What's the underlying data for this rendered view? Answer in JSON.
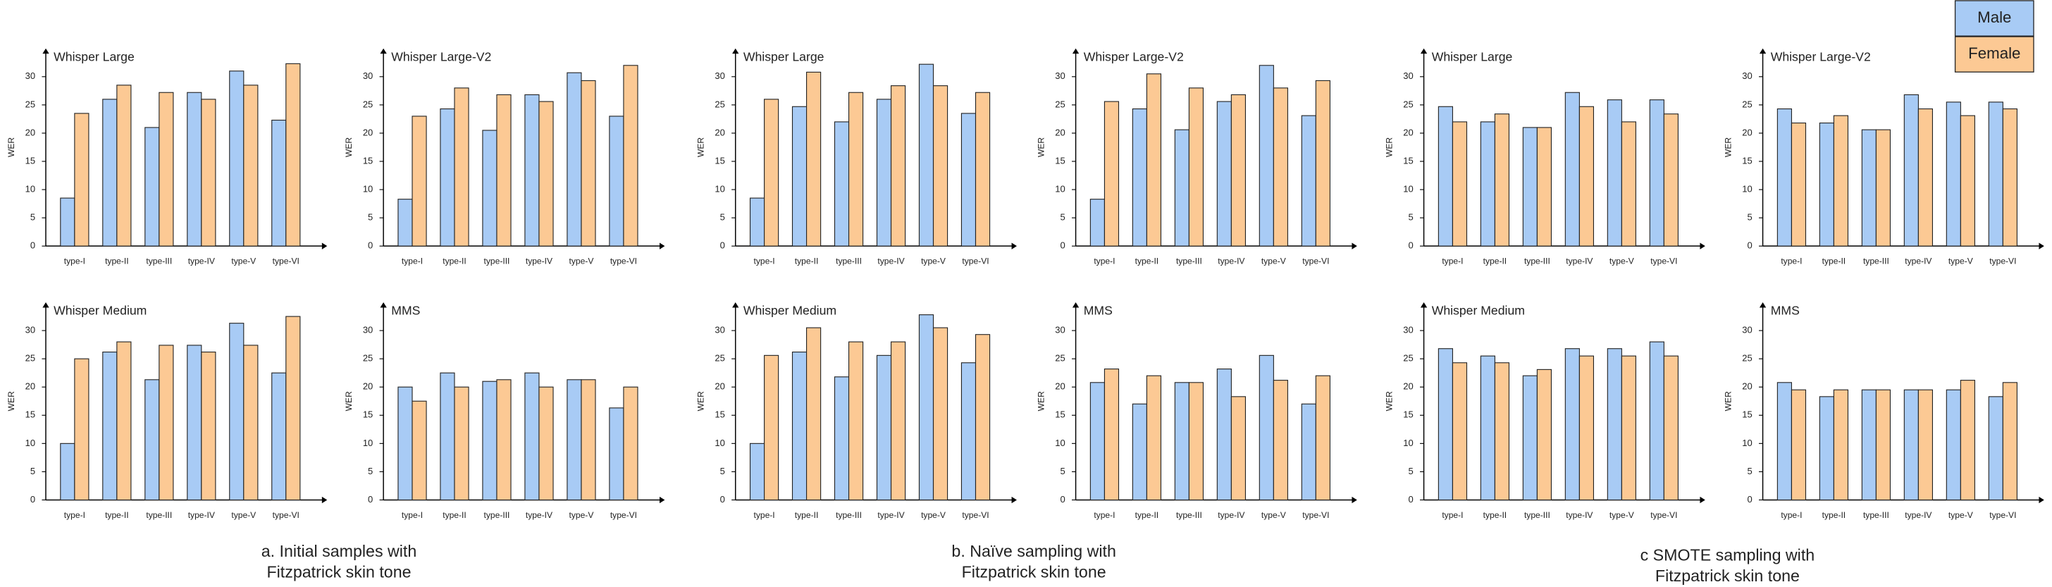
{
  "legend": [
    {
      "name": "Male",
      "color": "#a8cbf5"
    },
    {
      "name": "Female",
      "color": "#fcc994"
    }
  ],
  "captions": [
    [
      "a. Initial samples with",
      "Fitzpatrick skin tone"
    ],
    [
      "b. Naïve sampling with",
      "Fitzpatrick skin tone"
    ],
    [
      "c SMOTE sampling with",
      "Fitzpatrick skin tone"
    ]
  ],
  "chart_data": [
    {
      "type": "bar",
      "title": "Whisper Large",
      "ylabel": "WER",
      "categories": [
        "type-I",
        "type-II",
        "type-III",
        "type-IV",
        "type-V",
        "type-VI"
      ],
      "ylim": [
        0,
        35
      ],
      "yticks": [
        0,
        5,
        10,
        15,
        20,
        25,
        30
      ],
      "series": [
        {
          "color": "#a8cbf5",
          "values": [
            8.5,
            26,
            21,
            27.2,
            31,
            22.3
          ]
        },
        {
          "color": "#fcc994",
          "values": [
            23.5,
            28.5,
            27.2,
            26,
            28.5,
            32.3
          ]
        }
      ]
    },
    {
      "type": "bar",
      "title": "Whisper Large-V2",
      "ylabel": "WER",
      "categories": [
        "type-I",
        "type-II",
        "type-III",
        "type-IV",
        "type-V",
        "type-VI"
      ],
      "ylim": [
        0,
        35
      ],
      "yticks": [
        0,
        5,
        10,
        15,
        20,
        25,
        30
      ],
      "series": [
        {
          "color": "#a8cbf5",
          "values": [
            8.3,
            24.3,
            20.5,
            26.8,
            30.7,
            23
          ]
        },
        {
          "color": "#fcc994",
          "values": [
            23,
            28,
            26.8,
            25.6,
            29.3,
            32
          ]
        }
      ]
    },
    {
      "type": "bar",
      "title": "Whisper Large",
      "ylabel": "WER",
      "categories": [
        "type-I",
        "type-II",
        "type-III",
        "type-IV",
        "type-V",
        "type-VI"
      ],
      "ylim": [
        0,
        35
      ],
      "yticks": [
        0,
        5,
        10,
        15,
        20,
        25,
        30
      ],
      "series": [
        {
          "color": "#a8cbf5",
          "values": [
            8.5,
            24.7,
            22,
            26,
            32.2,
            23.5
          ]
        },
        {
          "color": "#fcc994",
          "values": [
            26,
            30.8,
            27.2,
            28.4,
            28.4,
            27.2
          ]
        }
      ]
    },
    {
      "type": "bar",
      "title": "Whisper Large-V2",
      "ylabel": "WER",
      "categories": [
        "type-I",
        "type-II",
        "type-III",
        "type-IV",
        "type-V",
        "type-VI"
      ],
      "ylim": [
        0,
        35
      ],
      "yticks": [
        0,
        5,
        10,
        15,
        20,
        25,
        30
      ],
      "series": [
        {
          "color": "#a8cbf5",
          "values": [
            8.3,
            24.3,
            20.6,
            25.6,
            32,
            23.1
          ]
        },
        {
          "color": "#fcc994",
          "values": [
            25.6,
            30.5,
            28,
            26.8,
            28,
            29.3
          ]
        }
      ]
    },
    {
      "type": "bar",
      "title": "Whisper Large",
      "ylabel": "WER",
      "categories": [
        "type-I",
        "type-II",
        "type-III",
        "type-IV",
        "type-V",
        "type-VI"
      ],
      "ylim": [
        0,
        35
      ],
      "yticks": [
        0,
        5,
        10,
        15,
        20,
        25,
        30
      ],
      "series": [
        {
          "color": "#a8cbf5",
          "values": [
            24.7,
            22,
            21,
            27.2,
            25.9,
            25.9
          ]
        },
        {
          "color": "#fcc994",
          "values": [
            22,
            23.4,
            21,
            24.7,
            22,
            23.4
          ]
        }
      ]
    },
    {
      "type": "bar",
      "title": "Whisper Large-V2",
      "ylabel": "WER",
      "categories": [
        "type-I",
        "type-II",
        "type-III",
        "type-IV",
        "type-V",
        "type-VI"
      ],
      "ylim": [
        0,
        35
      ],
      "yticks": [
        0,
        5,
        10,
        15,
        20,
        25,
        30
      ],
      "series": [
        {
          "color": "#a8cbf5",
          "values": [
            24.3,
            21.8,
            20.6,
            26.8,
            25.5,
            25.5
          ]
        },
        {
          "color": "#fcc994",
          "values": [
            21.8,
            23.1,
            20.6,
            24.3,
            23.1,
            24.3
          ]
        }
      ]
    },
    {
      "type": "bar",
      "title": "Whisper Medium",
      "ylabel": "WER",
      "categories": [
        "type-I",
        "type-II",
        "type-III",
        "type-IV",
        "type-V",
        "type-VI"
      ],
      "ylim": [
        0,
        35
      ],
      "yticks": [
        0,
        5,
        10,
        15,
        20,
        25,
        30
      ],
      "series": [
        {
          "color": "#a8cbf5",
          "values": [
            10,
            26.2,
            21.3,
            27.4,
            31.3,
            22.5
          ]
        },
        {
          "color": "#fcc994",
          "values": [
            25,
            28,
            27.4,
            26.2,
            27.4,
            32.5
          ]
        }
      ]
    },
    {
      "type": "bar",
      "title": "MMS",
      "ylabel": "WER",
      "categories": [
        "type-I",
        "type-II",
        "type-III",
        "type-IV",
        "type-V",
        "type-VI"
      ],
      "ylim": [
        0,
        35
      ],
      "yticks": [
        0,
        5,
        10,
        15,
        20,
        25,
        30
      ],
      "series": [
        {
          "color": "#a8cbf5",
          "values": [
            20,
            22.5,
            21,
            22.5,
            21.3,
            16.3
          ]
        },
        {
          "color": "#fcc994",
          "values": [
            17.5,
            20,
            21.3,
            20,
            21.3,
            20
          ]
        }
      ]
    },
    {
      "type": "bar",
      "title": "Whisper Medium",
      "ylabel": "WER",
      "categories": [
        "type-I",
        "type-II",
        "type-III",
        "type-IV",
        "type-V",
        "type-VI"
      ],
      "ylim": [
        0,
        35
      ],
      "yticks": [
        0,
        5,
        10,
        15,
        20,
        25,
        30
      ],
      "series": [
        {
          "color": "#a8cbf5",
          "values": [
            10,
            26.2,
            21.8,
            25.6,
            32.8,
            24.3
          ]
        },
        {
          "color": "#fcc994",
          "values": [
            25.6,
            30.5,
            28,
            28,
            30.5,
            29.3
          ]
        }
      ]
    },
    {
      "type": "bar",
      "title": "MMS",
      "ylabel": "WER",
      "categories": [
        "type-I",
        "type-II",
        "type-III",
        "type-IV",
        "type-V",
        "type-VI"
      ],
      "ylim": [
        0,
        35
      ],
      "yticks": [
        0,
        5,
        10,
        15,
        20,
        25,
        30
      ],
      "series": [
        {
          "color": "#a8cbf5",
          "values": [
            20.8,
            17,
            20.8,
            23.2,
            25.6,
            17
          ]
        },
        {
          "color": "#fcc994",
          "values": [
            23.2,
            22,
            20.8,
            18.3,
            21.2,
            22
          ]
        }
      ]
    },
    {
      "type": "bar",
      "title": "Whisper Medium",
      "ylabel": "WER",
      "categories": [
        "type-I",
        "type-II",
        "type-III",
        "type-IV",
        "type-V",
        "type-VI"
      ],
      "ylim": [
        0,
        35
      ],
      "yticks": [
        0,
        5,
        10,
        15,
        20,
        25,
        30
      ],
      "series": [
        {
          "color": "#a8cbf5",
          "values": [
            26.8,
            25.5,
            22,
            26.8,
            26.8,
            28
          ]
        },
        {
          "color": "#fcc994",
          "values": [
            24.3,
            24.3,
            23.1,
            25.5,
            25.5,
            25.5
          ]
        }
      ]
    },
    {
      "type": "bar",
      "title": "MMS",
      "ylabel": "WER",
      "categories": [
        "type-I",
        "type-II",
        "type-III",
        "type-IV",
        "type-V",
        "type-VI"
      ],
      "ylim": [
        0,
        35
      ],
      "yticks": [
        0,
        5,
        10,
        15,
        20,
        25,
        30
      ],
      "series": [
        {
          "color": "#a8cbf5",
          "values": [
            20.8,
            18.3,
            19.5,
            19.5,
            19.5,
            18.3
          ]
        },
        {
          "color": "#fcc994",
          "values": [
            19.5,
            19.5,
            19.5,
            19.5,
            21.2,
            20.8
          ]
        }
      ]
    }
  ]
}
